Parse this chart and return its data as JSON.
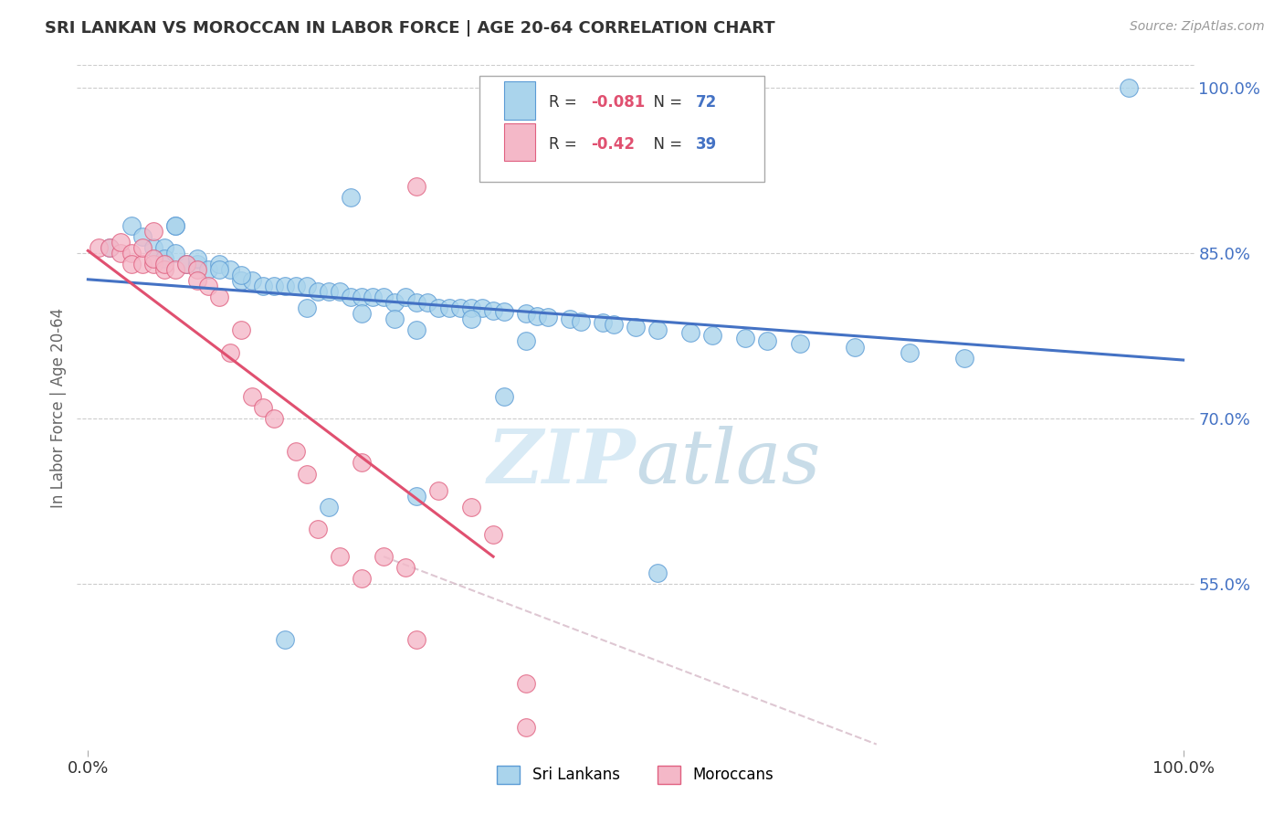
{
  "title": "SRI LANKAN VS MOROCCAN IN LABOR FORCE | AGE 20-64 CORRELATION CHART",
  "source": "Source: ZipAtlas.com",
  "ylabel": "In Labor Force | Age 20-64",
  "legend_label1": "Sri Lankans",
  "legend_label2": "Moroccans",
  "r1": -0.081,
  "n1": 72,
  "r2": -0.42,
  "n2": 39,
  "ylim": [
    0.4,
    1.02
  ],
  "xlim": [
    -0.01,
    1.01
  ],
  "yticks": [
    0.55,
    0.7,
    0.85,
    1.0
  ],
  "ytick_labels": [
    "55.0%",
    "70.0%",
    "85.0%",
    "100.0%"
  ],
  "color_blue_fill": "#aad4ec",
  "color_blue_edge": "#5b9bd5",
  "color_pink_fill": "#f4b8c8",
  "color_pink_edge": "#e06080",
  "color_line_blue": "#4472c4",
  "color_line_pink": "#e05070",
  "color_ref_line": "#d0b0c0",
  "color_grid": "#cccccc",
  "color_ytick": "#4472c4",
  "color_title": "#333333",
  "color_source": "#999999",
  "color_ylabel": "#666666",
  "watermark_color": "#d8eaf5",
  "blue_line_x0": 0.0,
  "blue_line_y0": 0.826,
  "blue_line_x1": 1.0,
  "blue_line_y1": 0.753,
  "pink_line_x0": 0.0,
  "pink_line_y0": 0.852,
  "pink_line_x1": 0.37,
  "pink_line_y1": 0.575,
  "ref_line_x0": 0.27,
  "ref_line_y0": 0.575,
  "ref_line_x1": 0.72,
  "ref_line_y1": 0.405,
  "blue_x": [
    0.02,
    0.04,
    0.05,
    0.06,
    0.07,
    0.07,
    0.08,
    0.09,
    0.1,
    0.1,
    0.11,
    0.12,
    0.13,
    0.14,
    0.15,
    0.16,
    0.17,
    0.18,
    0.19,
    0.2,
    0.21,
    0.22,
    0.23,
    0.24,
    0.25,
    0.26,
    0.27,
    0.28,
    0.29,
    0.3,
    0.31,
    0.32,
    0.33,
    0.34,
    0.35,
    0.36,
    0.37,
    0.38,
    0.4,
    0.41,
    0.42,
    0.44,
    0.45,
    0.47,
    0.48,
    0.5,
    0.52,
    0.55,
    0.57,
    0.6,
    0.62,
    0.65,
    0.7,
    0.75,
    0.8,
    0.08,
    0.12,
    0.2,
    0.25,
    0.3,
    0.35,
    0.18,
    0.22,
    0.28,
    0.38,
    0.14,
    0.08,
    0.52,
    0.95,
    0.3,
    0.24,
    0.4
  ],
  "blue_y": [
    0.855,
    0.875,
    0.865,
    0.855,
    0.855,
    0.845,
    0.85,
    0.84,
    0.84,
    0.845,
    0.835,
    0.84,
    0.835,
    0.825,
    0.825,
    0.82,
    0.82,
    0.82,
    0.82,
    0.82,
    0.815,
    0.815,
    0.815,
    0.81,
    0.81,
    0.81,
    0.81,
    0.805,
    0.81,
    0.805,
    0.805,
    0.8,
    0.8,
    0.8,
    0.8,
    0.8,
    0.798,
    0.797,
    0.795,
    0.793,
    0.792,
    0.79,
    0.788,
    0.787,
    0.785,
    0.783,
    0.78,
    0.778,
    0.775,
    0.773,
    0.77,
    0.768,
    0.765,
    0.76,
    0.755,
    0.875,
    0.835,
    0.8,
    0.795,
    0.78,
    0.79,
    0.5,
    0.62,
    0.79,
    0.72,
    0.83,
    0.875,
    0.56,
    1.0,
    0.63,
    0.9,
    0.77
  ],
  "pink_x": [
    0.01,
    0.02,
    0.03,
    0.03,
    0.04,
    0.04,
    0.05,
    0.05,
    0.06,
    0.06,
    0.06,
    0.07,
    0.07,
    0.08,
    0.09,
    0.1,
    0.1,
    0.11,
    0.12,
    0.13,
    0.14,
    0.15,
    0.16,
    0.17,
    0.19,
    0.2,
    0.21,
    0.23,
    0.25,
    0.27,
    0.29,
    0.3,
    0.32,
    0.35,
    0.37,
    0.4,
    0.4,
    0.3,
    0.25
  ],
  "pink_y": [
    0.855,
    0.855,
    0.85,
    0.86,
    0.85,
    0.84,
    0.84,
    0.855,
    0.84,
    0.845,
    0.87,
    0.835,
    0.84,
    0.835,
    0.84,
    0.835,
    0.825,
    0.82,
    0.81,
    0.76,
    0.78,
    0.72,
    0.71,
    0.7,
    0.67,
    0.65,
    0.6,
    0.575,
    0.555,
    0.575,
    0.565,
    0.5,
    0.635,
    0.62,
    0.595,
    0.42,
    0.46,
    0.91,
    0.66
  ]
}
